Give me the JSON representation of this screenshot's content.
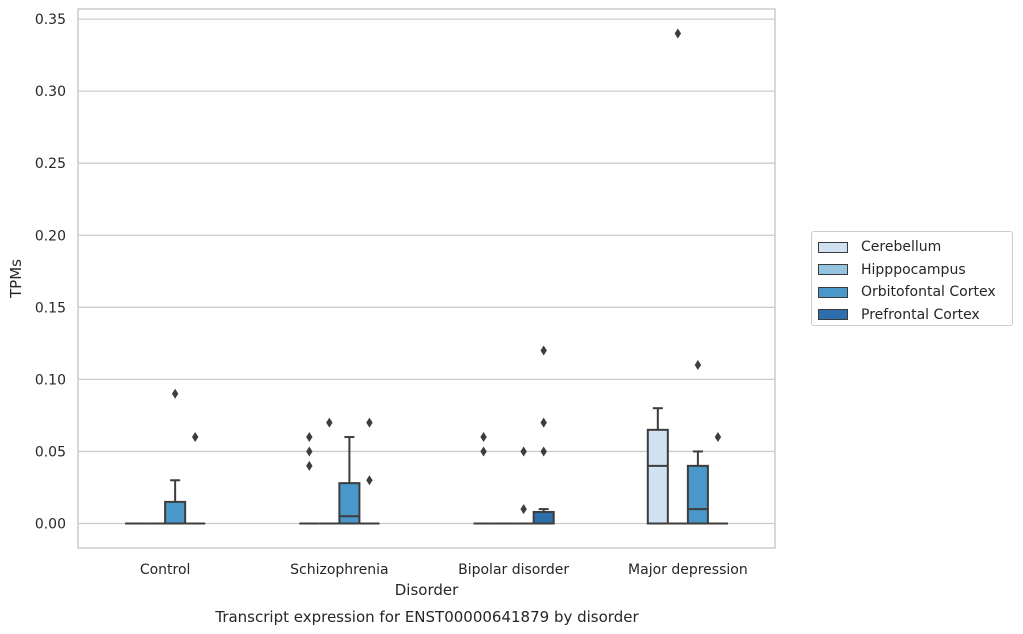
{
  "chart_data": {
    "type": "box",
    "title": "Transcript expression for ENST00000641879 by disorder",
    "xlabel": "Disorder",
    "ylabel": "TPMs",
    "categories": [
      "Control",
      "Schizophrenia",
      "Bipolar disorder",
      "Major depression"
    ],
    "ylim": [
      -0.017,
      0.357
    ],
    "yticks": [
      "0.00",
      "0.05",
      "0.10",
      "0.15",
      "0.20",
      "0.25",
      "0.30",
      "0.35"
    ],
    "grid": true,
    "legend_position": "right",
    "series": [
      {
        "name": "Cerebellum",
        "color": "#d0e1f2",
        "boxes": [
          {
            "q1": 0,
            "median": 0,
            "q3": 0,
            "whisker_low": 0,
            "whisker_high": 0,
            "outliers": []
          },
          {
            "q1": 0,
            "median": 0,
            "q3": 0,
            "whisker_low": 0,
            "whisker_high": 0,
            "outliers": [
              0.04,
              0.05,
              0.06
            ]
          },
          {
            "q1": 0,
            "median": 0,
            "q3": 0,
            "whisker_low": 0,
            "whisker_high": 0,
            "outliers": [
              0.05,
              0.06
            ]
          },
          {
            "q1": 0,
            "median": 0.04,
            "q3": 0.065,
            "whisker_low": 0,
            "whisker_high": 0.08,
            "outliers": []
          }
        ]
      },
      {
        "name": "Hipppocampus",
        "color": "#94c4df",
        "boxes": [
          {
            "q1": 0,
            "median": 0,
            "q3": 0,
            "whisker_low": 0,
            "whisker_high": 0,
            "outliers": []
          },
          {
            "q1": 0,
            "median": 0,
            "q3": 0,
            "whisker_low": 0,
            "whisker_high": 0,
            "outliers": [
              0.07
            ]
          },
          {
            "q1": 0,
            "median": 0,
            "q3": 0,
            "whisker_low": 0,
            "whisker_high": 0,
            "outliers": []
          },
          {
            "q1": 0,
            "median": 0,
            "q3": 0,
            "whisker_low": 0,
            "whisker_high": 0,
            "outliers": [
              0.34
            ]
          }
        ]
      },
      {
        "name": "Orbitofontal Cortex",
        "color": "#4a98c9",
        "boxes": [
          {
            "q1": 0,
            "median": 0,
            "q3": 0.015,
            "whisker_low": 0,
            "whisker_high": 0.03,
            "outliers": [
              0.09
            ]
          },
          {
            "q1": 0,
            "median": 0.005,
            "q3": 0.028,
            "whisker_low": 0,
            "whisker_high": 0.06,
            "outliers": []
          },
          {
            "q1": 0,
            "median": 0,
            "q3": 0,
            "whisker_low": 0,
            "whisker_high": 0,
            "outliers": [
              0.01,
              0.05
            ]
          },
          {
            "q1": 0,
            "median": 0.01,
            "q3": 0.04,
            "whisker_low": 0,
            "whisker_high": 0.05,
            "outliers": [
              0.11
            ]
          }
        ]
      },
      {
        "name": "Prefrontal Cortex",
        "color": "#2d6eac",
        "boxes": [
          {
            "q1": 0,
            "median": 0,
            "q3": 0,
            "whisker_low": 0,
            "whisker_high": 0,
            "outliers": [
              0.06
            ]
          },
          {
            "q1": 0,
            "median": 0,
            "q3": 0,
            "whisker_low": 0,
            "whisker_high": 0,
            "outliers": [
              0.03,
              0.07
            ]
          },
          {
            "q1": 0,
            "median": 0,
            "q3": 0.008,
            "whisker_low": 0,
            "whisker_high": 0.01,
            "outliers": [
              0.05,
              0.07,
              0.12
            ]
          },
          {
            "q1": 0,
            "median": 0,
            "q3": 0,
            "whisker_low": 0,
            "whisker_high": 0,
            "outliers": [
              0.06
            ]
          }
        ]
      }
    ]
  }
}
